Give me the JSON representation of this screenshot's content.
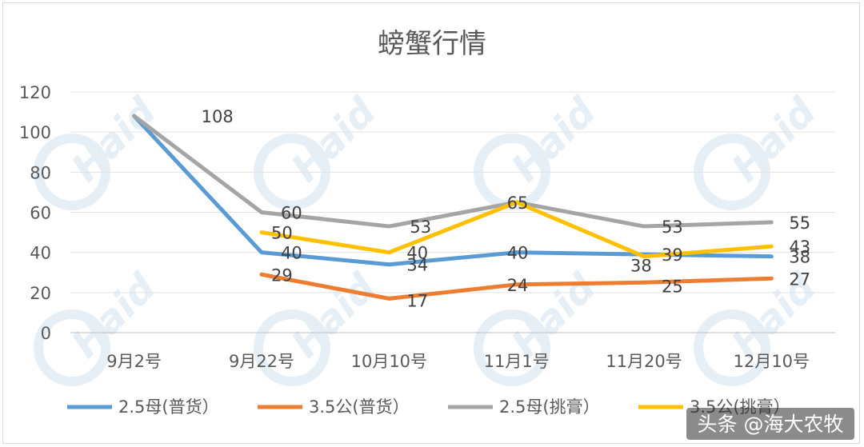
{
  "chart_data": {
    "type": "line",
    "title": "螃蟹行情",
    "categories": [
      "9月2号",
      "9月22号",
      "10月10号",
      "11月1号",
      "11月20号",
      "12月10号"
    ],
    "ylim": [
      0,
      120
    ],
    "yticks": [
      0,
      20,
      40,
      60,
      80,
      100,
      120
    ],
    "grid": "horizontal",
    "legend_position": "bottom",
    "series": [
      {
        "name": "2.5母(普货）",
        "color": "#5b9bd5",
        "values": [
          108,
          40,
          34,
          40,
          39,
          38
        ]
      },
      {
        "name": "3.5公(普货）",
        "color": "#ed7d31",
        "values": [
          null,
          29,
          17,
          24,
          25,
          27
        ]
      },
      {
        "name": "2.5母(挑膏）",
        "color": "#a5a5a5",
        "values": [
          108,
          60,
          53,
          65,
          53,
          55
        ]
      },
      {
        "name": "3.5公(挑膏）",
        "color": "#ffc000",
        "values": [
          null,
          50,
          40,
          65,
          38,
          43
        ]
      }
    ],
    "data_labels": [
      {
        "text": "108",
        "series": 2,
        "index": 0
      },
      {
        "text": "60",
        "series": 2,
        "index": 1
      },
      {
        "text": "53",
        "series": 2,
        "index": 2
      },
      {
        "text": "65",
        "series": 2,
        "index": 3
      },
      {
        "text": "53",
        "series": 2,
        "index": 4
      },
      {
        "text": "55",
        "series": 2,
        "index": 5
      },
      {
        "text": "50",
        "series": 3,
        "index": 1
      },
      {
        "text": "40",
        "series": 3,
        "index": 2
      },
      {
        "text": "38",
        "series": 3,
        "index": 4
      },
      {
        "text": "43",
        "series": 3,
        "index": 5
      },
      {
        "text": "40",
        "series": 0,
        "index": 1
      },
      {
        "text": "34",
        "series": 0,
        "index": 2
      },
      {
        "text": "40",
        "series": 0,
        "index": 3
      },
      {
        "text": "39",
        "series": 0,
        "index": 4
      },
      {
        "text": "38",
        "series": 0,
        "index": 5
      },
      {
        "text": "29",
        "series": 1,
        "index": 1
      },
      {
        "text": "17",
        "series": 1,
        "index": 2
      },
      {
        "text": "24",
        "series": 1,
        "index": 3
      },
      {
        "text": "25",
        "series": 1,
        "index": 4
      },
      {
        "text": "27",
        "series": 1,
        "index": 5
      }
    ]
  },
  "watermark": {
    "text": "Haid"
  },
  "credit": {
    "text": "头条 @海大农牧"
  }
}
